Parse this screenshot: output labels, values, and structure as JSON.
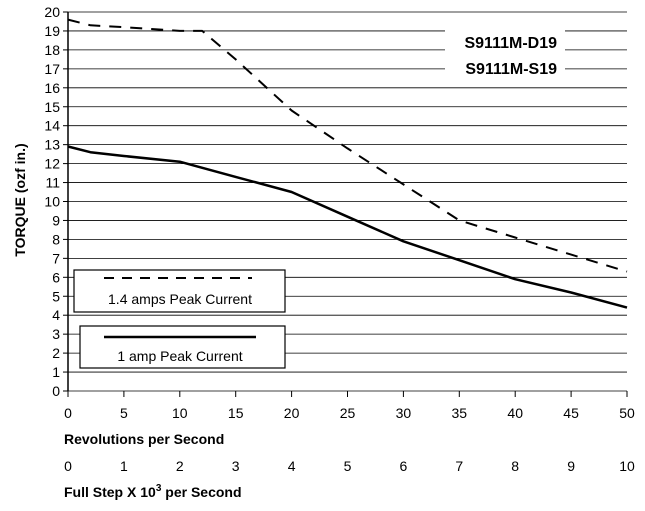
{
  "chart_data": {
    "type": "line",
    "ylabel": "TORQUE (ozf in.)",
    "ylim": [
      0,
      20
    ],
    "y_ticks": [
      "0",
      "1",
      "2",
      "3",
      "4",
      "5",
      "6",
      "7",
      "8",
      "9",
      "10",
      "11",
      "12",
      "13",
      "14",
      "15",
      "16",
      "17",
      "18",
      "19",
      "20"
    ],
    "xlim": [
      0,
      50
    ],
    "x_ticks": [
      "0",
      "5",
      "10",
      "15",
      "20",
      "25",
      "30",
      "35",
      "40",
      "45",
      "50"
    ],
    "xlabel": "Revolutions per Second",
    "secondary_axis": {
      "ticks": [
        "0",
        "1",
        "2",
        "3",
        "4",
        "5",
        "6",
        "7",
        "8",
        "9",
        "10"
      ],
      "label_prefix": "Full Step X 10",
      "label_sup": "3",
      "label_suffix": " per Second"
    },
    "models": [
      "S9111M-D19",
      "S9111M-S19"
    ],
    "grid": true,
    "series": [
      {
        "name": "1.4 amps Peak Current",
        "style": "dashed",
        "x": [
          0,
          2,
          5,
          10,
          12,
          15,
          20,
          25,
          30,
          35,
          40,
          45,
          50
        ],
        "y": [
          19.6,
          19.3,
          19.2,
          19.0,
          19.0,
          17.5,
          14.8,
          12.8,
          10.9,
          9.0,
          8.1,
          7.2,
          6.3
        ]
      },
      {
        "name": "1 amp Peak Current",
        "style": "solid",
        "x": [
          0,
          2,
          5,
          10,
          15,
          20,
          25,
          30,
          35,
          40,
          45,
          50
        ],
        "y": [
          12.9,
          12.6,
          12.4,
          12.1,
          11.3,
          10.5,
          9.2,
          7.9,
          6.9,
          5.9,
          5.2,
          4.4
        ]
      }
    ]
  }
}
